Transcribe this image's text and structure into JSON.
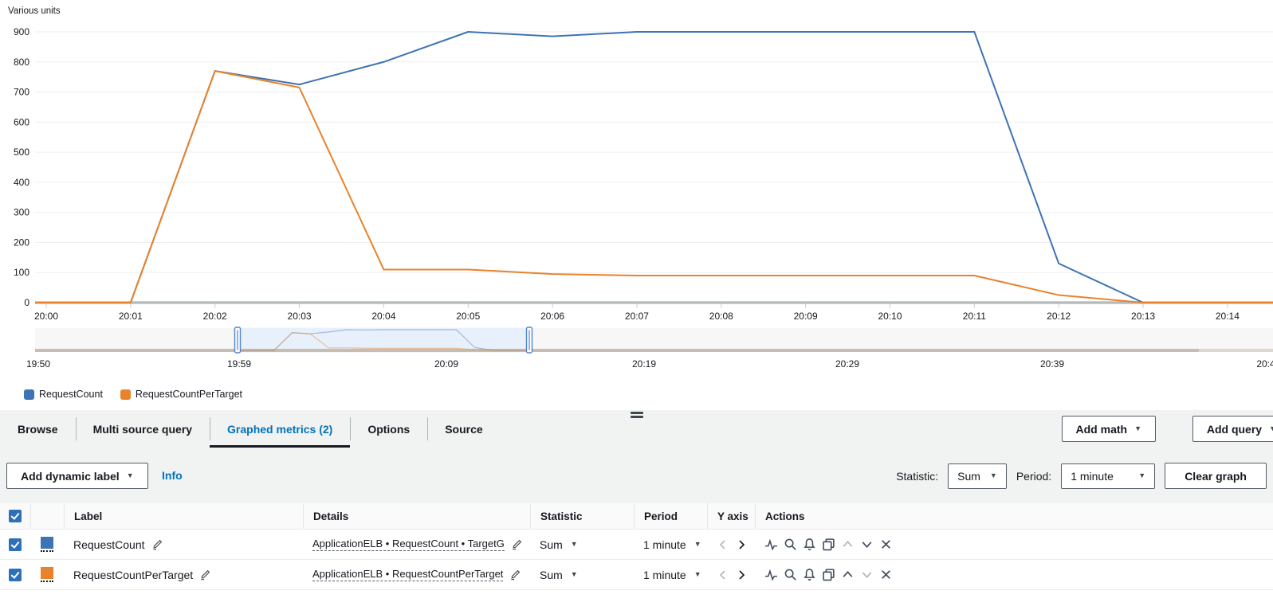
{
  "chart": {
    "unit_label": "Various units"
  },
  "chart_data": {
    "type": "line",
    "ylabel": "Various units",
    "ylim": [
      0,
      900
    ],
    "y_ticks": [
      0,
      100,
      200,
      300,
      400,
      500,
      600,
      700,
      800,
      900
    ],
    "x": [
      "20:00",
      "20:01",
      "20:02",
      "20:03",
      "20:04",
      "20:05",
      "20:06",
      "20:07",
      "20:08",
      "20:09",
      "20:10",
      "20:11",
      "20:12",
      "20:13",
      "20:14"
    ],
    "grid": true,
    "legend_position": "bottom-left",
    "series": [
      {
        "name": "RequestCount",
        "color": "#3e73b5",
        "values": [
          0,
          0,
          770,
          725,
          800,
          900,
          885,
          900,
          900,
          900,
          900,
          900,
          130,
          0,
          0
        ]
      },
      {
        "name": "RequestCountPerTarget",
        "color": "#e8832c",
        "values": [
          0,
          0,
          770,
          715,
          110,
          110,
          95,
          90,
          90,
          90,
          90,
          90,
          25,
          0,
          0
        ]
      }
    ],
    "overview": {
      "ticks": [
        "19:50",
        "19:59",
        "20:09",
        "20:19",
        "20:29",
        "20:39",
        "20:4"
      ],
      "selection": [
        "19:59",
        "20:15"
      ]
    }
  },
  "legend": {
    "items": [
      {
        "label": "RequestCount",
        "color": "#3e73b5"
      },
      {
        "label": "RequestCountPerTarget",
        "color": "#e8832c"
      }
    ]
  },
  "tabs": [
    {
      "label": "Browse"
    },
    {
      "label": "Multi source query"
    },
    {
      "label": "Graphed metrics (2)"
    },
    {
      "label": "Options"
    },
    {
      "label": "Source"
    }
  ],
  "header_buttons": {
    "add_math": "Add math",
    "add_query": "Add query"
  },
  "toolbar": {
    "add_dynamic_label": "Add dynamic label",
    "info_label": "Info",
    "statistic_label": "Statistic:",
    "statistic_value": "Sum",
    "period_label": "Period:",
    "period_value": "1 minute",
    "clear_graph_label": "Clear graph"
  },
  "icons": {
    "caret_down": "▼"
  },
  "table": {
    "headers": {
      "label": "Label",
      "details": "Details",
      "statistic": "Statistic",
      "period": "Period",
      "yaxis": "Y axis",
      "actions": "Actions"
    },
    "rows": [
      {
        "label": "RequestCount",
        "color": "#3e73b5",
        "details": "ApplicationELB • RequestCount • TargetG",
        "statistic": "Sum",
        "period": "1 minute"
      },
      {
        "label": "RequestCountPerTarget",
        "color": "#e8832c",
        "details": "ApplicationELB • RequestCountPerTarget",
        "statistic": "Sum",
        "period": "1 minute"
      }
    ]
  }
}
